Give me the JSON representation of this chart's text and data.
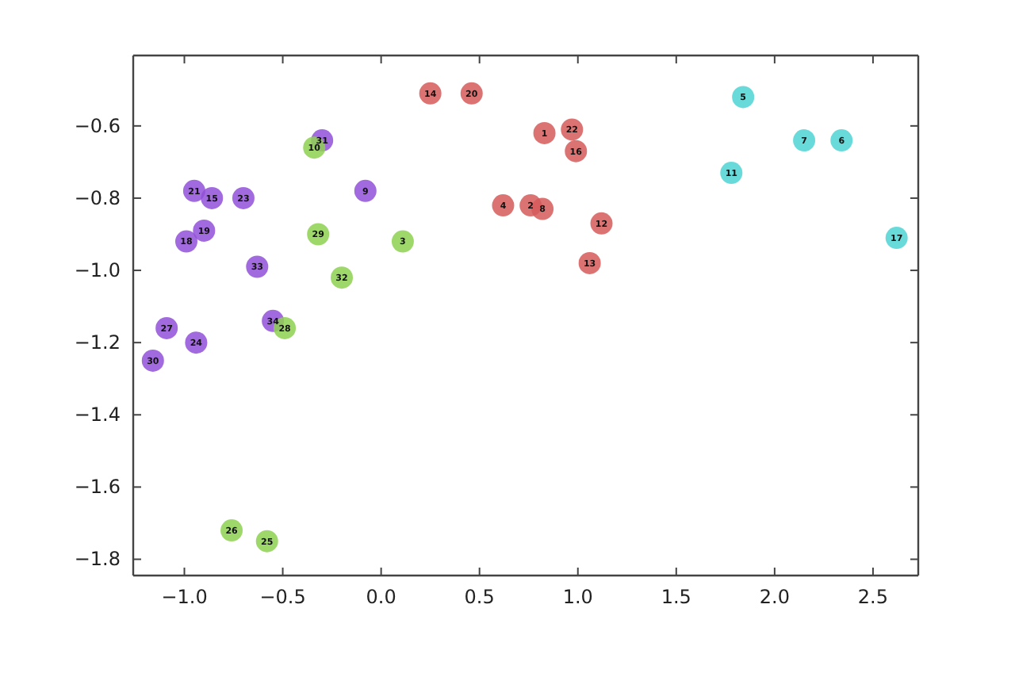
{
  "chart_data": {
    "type": "scatter",
    "marker": "circle",
    "xlim": [
      -1.26,
      2.73
    ],
    "ylim": [
      -1.845,
      -0.405
    ],
    "xticks": [
      {
        "value": -1,
        "label": "−1.0"
      },
      {
        "value": -0.5,
        "label": "−0.5"
      },
      {
        "value": 0,
        "label": "0.0"
      },
      {
        "value": 0.5,
        "label": "0.5"
      },
      {
        "value": 1,
        "label": "1.0"
      },
      {
        "value": 1.5,
        "label": "1.5"
      },
      {
        "value": 2,
        "label": "2.0"
      },
      {
        "value": 2.5,
        "label": "2.5"
      }
    ],
    "yticks": [
      {
        "value": -1.8,
        "label": "−1.8"
      },
      {
        "value": -1.6,
        "label": "−1.6"
      },
      {
        "value": -1.4,
        "label": "−1.4"
      },
      {
        "value": -1.2,
        "label": "−1.2"
      },
      {
        "value": -1,
        "label": "−1.0"
      },
      {
        "value": -0.8,
        "label": "−0.8"
      },
      {
        "value": -0.6,
        "label": "−0.6"
      }
    ],
    "series": [
      {
        "color": "#9150d8",
        "x": [
          -0.95,
          -0.86,
          -0.7,
          -0.9,
          -0.99,
          -0.63,
          -0.08,
          -1.09,
          -0.94,
          -1.16,
          -0.55,
          -0.3
        ],
        "values": [
          -0.78,
          -0.8,
          -0.8,
          -0.89,
          -0.92,
          -0.99,
          -0.78,
          -1.16,
          -1.2,
          -1.25,
          -1.14,
          -0.64
        ]
      },
      {
        "color": "#8ed150",
        "x": [
          -0.34,
          -0.32,
          0.11,
          -0.2,
          -0.49,
          -0.76,
          -0.58
        ],
        "values": [
          -0.66,
          -0.9,
          -0.92,
          -1.02,
          -1.16,
          -1.72,
          -1.75
        ]
      },
      {
        "color": "#d65a5a",
        "x": [
          0.25,
          0.46,
          0.83,
          0.97,
          0.99,
          0.62,
          0.76,
          0.82,
          1.12,
          1.06
        ],
        "values": [
          -0.51,
          -0.51,
          -0.62,
          -0.61,
          -0.67,
          -0.82,
          -0.82,
          -0.83,
          -0.87,
          -0.98
        ]
      },
      {
        "color": "#4fd3d3",
        "x": [
          1.84,
          2.15,
          2.34,
          1.78,
          2.62
        ],
        "values": [
          -0.52,
          -0.64,
          -0.64,
          -0.73,
          -0.91
        ]
      }
    ],
    "annotations": [
      {
        "text": "21",
        "x": -0.95,
        "y": -0.78
      },
      {
        "text": "15",
        "x": -0.86,
        "y": -0.8
      },
      {
        "text": "23",
        "x": -0.7,
        "y": -0.8
      },
      {
        "text": "19",
        "x": -0.9,
        "y": -0.89
      },
      {
        "text": "18",
        "x": -0.99,
        "y": -0.92
      },
      {
        "text": "33",
        "x": -0.63,
        "y": -0.99
      },
      {
        "text": "9",
        "x": -0.08,
        "y": -0.78
      },
      {
        "text": "27",
        "x": -1.09,
        "y": -1.16
      },
      {
        "text": "24",
        "x": -0.94,
        "y": -1.2
      },
      {
        "text": "30",
        "x": -1.16,
        "y": -1.25
      },
      {
        "text": "34",
        "x": -0.55,
        "y": -1.14
      },
      {
        "text": "31",
        "x": -0.3,
        "y": -0.64
      },
      {
        "text": "10",
        "x": -0.34,
        "y": -0.66
      },
      {
        "text": "29",
        "x": -0.32,
        "y": -0.9
      },
      {
        "text": "3",
        "x": 0.11,
        "y": -0.92
      },
      {
        "text": "32",
        "x": -0.2,
        "y": -1.02
      },
      {
        "text": "28",
        "x": -0.49,
        "y": -1.16
      },
      {
        "text": "26",
        "x": -0.76,
        "y": -1.72
      },
      {
        "text": "25",
        "x": -0.58,
        "y": -1.75
      },
      {
        "text": "14",
        "x": 0.25,
        "y": -0.51
      },
      {
        "text": "20",
        "x": 0.46,
        "y": -0.51
      },
      {
        "text": "1",
        "x": 0.83,
        "y": -0.62
      },
      {
        "text": "22",
        "x": 0.97,
        "y": -0.61
      },
      {
        "text": "16",
        "x": 0.99,
        "y": -0.67
      },
      {
        "text": "4",
        "x": 0.62,
        "y": -0.82
      },
      {
        "text": "2",
        "x": 0.76,
        "y": -0.82
      },
      {
        "text": "8",
        "x": 0.82,
        "y": -0.83
      },
      {
        "text": "12",
        "x": 1.12,
        "y": -0.87
      },
      {
        "text": "13",
        "x": 1.06,
        "y": -0.98
      },
      {
        "text": "5",
        "x": 1.84,
        "y": -0.52
      },
      {
        "text": "7",
        "x": 2.15,
        "y": -0.64
      },
      {
        "text": "6",
        "x": 2.34,
        "y": -0.64
      },
      {
        "text": "11",
        "x": 1.78,
        "y": -0.73
      },
      {
        "text": "17",
        "x": 2.62,
        "y": -0.91
      }
    ]
  }
}
